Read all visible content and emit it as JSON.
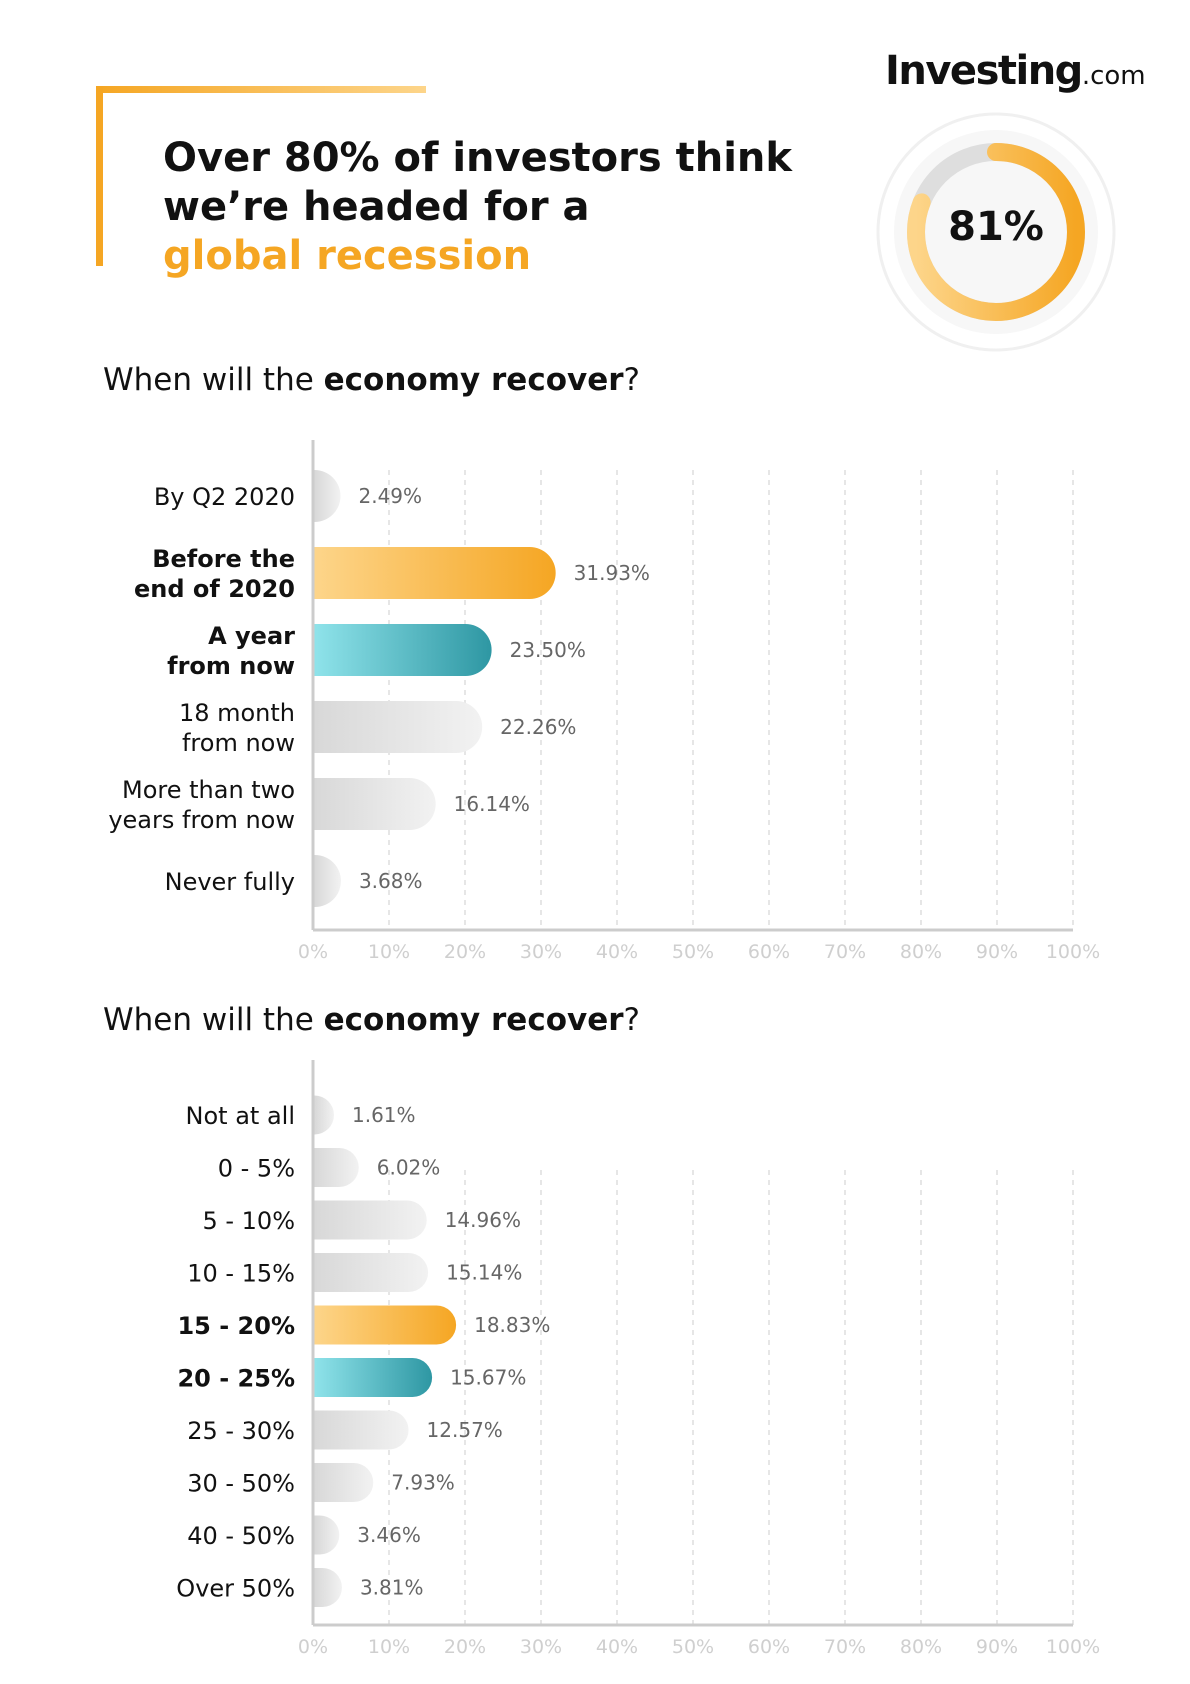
{
  "brand": {
    "name": "Investing",
    "suffix": ".com"
  },
  "headline": {
    "line1": "Over 80% of investors think",
    "line2": "we’re headed for a",
    "line3": "global recession"
  },
  "kpi": {
    "value": 81,
    "label": "81%"
  },
  "colors": {
    "orange": "#f5a623",
    "orange_light": "#fdd58a",
    "teal": "#2e97a3",
    "teal_light": "#8fe3ea",
    "gray": "#d8d8d8",
    "gray_light": "#f2f2f2"
  },
  "sections": [
    {
      "title_pre": "When will the ",
      "title_bold": "economy recover",
      "title_post": "?"
    },
    {
      "title_pre": "When will the ",
      "title_bold": "economy recover",
      "title_post": "?"
    }
  ],
  "chart_data": [
    {
      "type": "bar",
      "orientation": "horizontal",
      "categories": [
        "By Q2 2020",
        "Before the\nend of 2020",
        "A year\nfrom now",
        "18 month\nfrom now",
        "More than two\nyears from now",
        "Never fully"
      ],
      "values": [
        2.49,
        31.93,
        23.5,
        22.26,
        16.14,
        3.68
      ],
      "value_labels": [
        "2.49%",
        "31.93%",
        "23.50%",
        "22.26%",
        "16.14%",
        "3.68%"
      ],
      "highlight": [
        "none",
        "orange",
        "teal",
        "none",
        "none",
        "none"
      ],
      "bold": [
        false,
        true,
        true,
        false,
        false,
        false
      ],
      "xlim": [
        0,
        100
      ],
      "x_ticks": [
        "0%",
        "10%",
        "20%",
        "30%",
        "40%",
        "50%",
        "60%",
        "70%",
        "80%",
        "90%",
        "100%"
      ],
      "grid": "vertical dashed"
    },
    {
      "type": "bar",
      "orientation": "horizontal",
      "categories": [
        "Not at all",
        "0 - 5%",
        "5 - 10%",
        "10 - 15%",
        "15 - 20%",
        "20 - 25%",
        "25 - 30%",
        "30 - 50%",
        "40 - 50%",
        "Over 50%"
      ],
      "values": [
        1.61,
        6.02,
        14.96,
        15.14,
        18.83,
        15.67,
        12.57,
        7.93,
        3.46,
        3.81
      ],
      "value_labels": [
        "1.61%",
        "6.02%",
        "14.96%",
        "15.14%",
        "18.83%",
        "15.67%",
        "12.57%",
        "7.93%",
        "3.46%",
        "3.81%"
      ],
      "highlight": [
        "none",
        "none",
        "none",
        "none",
        "orange",
        "teal",
        "none",
        "none",
        "none",
        "none"
      ],
      "bold": [
        false,
        false,
        false,
        false,
        true,
        true,
        false,
        false,
        false,
        false
      ],
      "xlim": [
        0,
        100
      ],
      "x_ticks": [
        "0%",
        "10%",
        "20%",
        "30%",
        "40%",
        "50%",
        "60%",
        "70%",
        "80%",
        "90%",
        "100%"
      ],
      "grid": "vertical dashed"
    }
  ]
}
